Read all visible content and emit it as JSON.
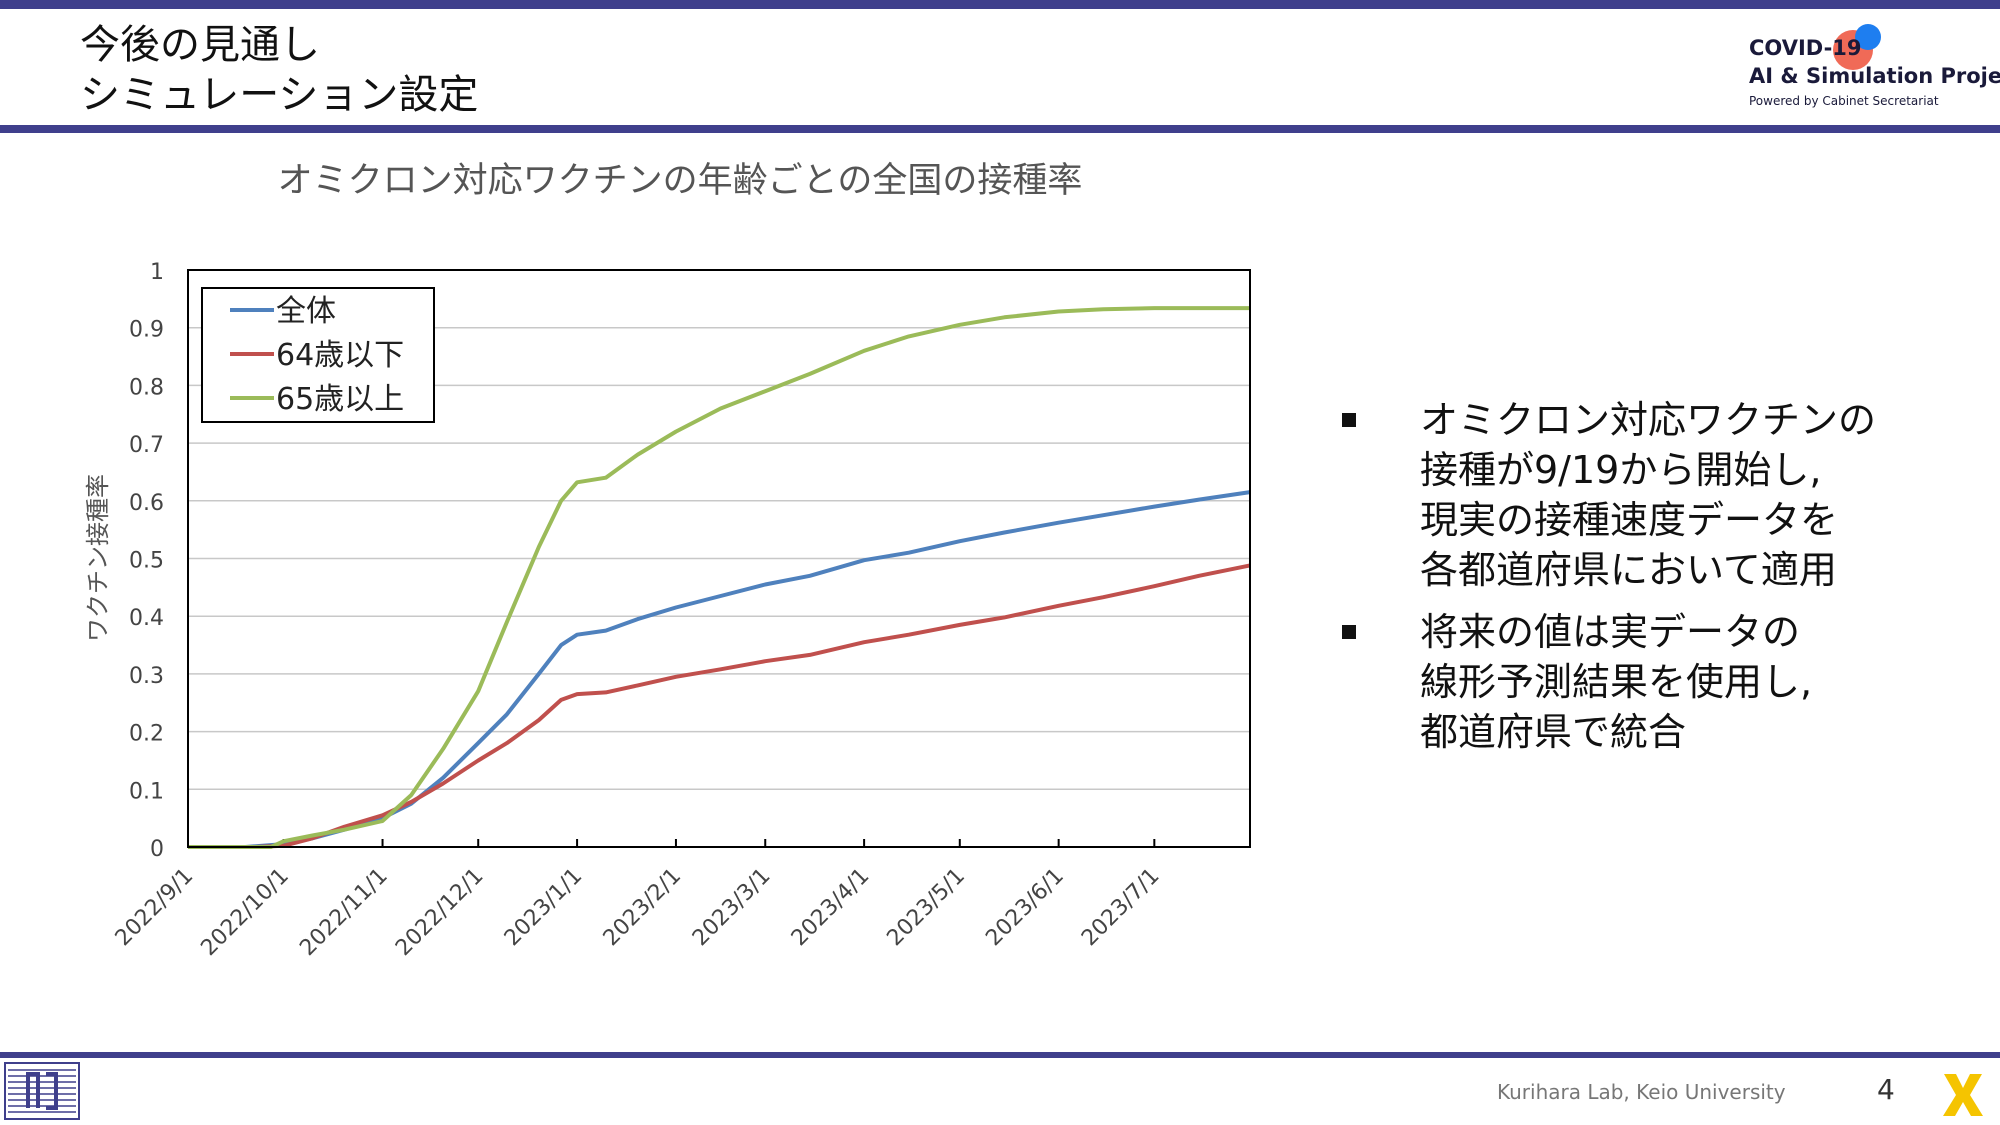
{
  "slide": {
    "title_line1": "今後の見通し",
    "title_line2": "シミュレーション設定",
    "page_number": "4",
    "footer_credit": "Kurihara Lab, Keio University"
  },
  "logo": {
    "line1": "COVID-19",
    "line2": "AI & Simulation Project",
    "line3": "Powered by Cabinet Secretariat"
  },
  "bullets": [
    {
      "lines": [
        "オミクロン対応ワクチンの",
        "接種が9/19から開始し,",
        "現実の接種速度データを",
        "各都道府県において適用"
      ]
    },
    {
      "lines": [
        "将来の値は実データの",
        "線形予測結果を使用し,",
        "都道府県で統合"
      ]
    }
  ],
  "colors": {
    "accent": "#3f3f8c",
    "series_total": "#4f81bd",
    "series_under64": "#c0504d",
    "series_over65": "#9bbb59"
  },
  "chart_data": {
    "type": "line",
    "title": "オミクロン対応ワクチンの年齢ごとの全国の接種率",
    "xlabel": "",
    "ylabel": "ワクチン接種率",
    "ylim": [
      0,
      1
    ],
    "yticks": [
      "0",
      "0.1",
      "0.2",
      "0.3",
      "0.4",
      "0.5",
      "0.6",
      "0.7",
      "0.8",
      "0.9",
      "1"
    ],
    "xlim": [
      "2022-09-01",
      "2023-07-31"
    ],
    "xticks": [
      {
        "date": "2022-09-01",
        "label": "2022/9/1"
      },
      {
        "date": "2022-10-01",
        "label": "2022/10/1"
      },
      {
        "date": "2022-11-01",
        "label": "2022/11/1"
      },
      {
        "date": "2022-12-01",
        "label": "2022/12/1"
      },
      {
        "date": "2023-01-01",
        "label": "2023/1/1"
      },
      {
        "date": "2023-02-01",
        "label": "2023/2/1"
      },
      {
        "date": "2023-03-01",
        "label": "2023/3/1"
      },
      {
        "date": "2023-04-01",
        "label": "2023/4/1"
      },
      {
        "date": "2023-05-01",
        "label": "2023/5/1"
      },
      {
        "date": "2023-06-01",
        "label": "2023/6/1"
      },
      {
        "date": "2023-07-01",
        "label": "2023/7/1"
      }
    ],
    "grid": true,
    "legend_position": "top-left",
    "series": [
      {
        "name": "全体",
        "color": "#4f81bd",
        "points": [
          [
            "2022-09-01",
            0
          ],
          [
            "2022-09-19",
            0
          ],
          [
            "2022-10-01",
            0.005
          ],
          [
            "2022-10-10",
            0.015
          ],
          [
            "2022-10-20",
            0.03
          ],
          [
            "2022-11-01",
            0.05
          ],
          [
            "2022-11-10",
            0.075
          ],
          [
            "2022-11-20",
            0.12
          ],
          [
            "2022-12-01",
            0.18
          ],
          [
            "2022-12-10",
            0.23
          ],
          [
            "2022-12-20",
            0.3
          ],
          [
            "2022-12-27",
            0.35
          ],
          [
            "2023-01-01",
            0.368
          ],
          [
            "2023-01-10",
            0.375
          ],
          [
            "2023-01-20",
            0.395
          ],
          [
            "2023-02-01",
            0.415
          ],
          [
            "2023-02-15",
            0.435
          ],
          [
            "2023-03-01",
            0.455
          ],
          [
            "2023-03-15",
            0.47
          ],
          [
            "2023-04-01",
            0.497
          ],
          [
            "2023-04-15",
            0.51
          ],
          [
            "2023-05-01",
            0.53
          ],
          [
            "2023-05-15",
            0.545
          ],
          [
            "2023-06-01",
            0.562
          ],
          [
            "2023-06-15",
            0.575
          ],
          [
            "2023-07-01",
            0.59
          ],
          [
            "2023-07-15",
            0.602
          ],
          [
            "2023-07-31",
            0.615
          ]
        ]
      },
      {
        "name": "64歳以下",
        "color": "#c0504d",
        "points": [
          [
            "2022-09-01",
            0
          ],
          [
            "2022-09-22",
            0
          ],
          [
            "2022-10-01",
            0.002
          ],
          [
            "2022-10-10",
            0.015
          ],
          [
            "2022-10-20",
            0.035
          ],
          [
            "2022-11-01",
            0.055
          ],
          [
            "2022-11-10",
            0.078
          ],
          [
            "2022-11-20",
            0.11
          ],
          [
            "2022-12-01",
            0.15
          ],
          [
            "2022-12-10",
            0.18
          ],
          [
            "2022-12-20",
            0.22
          ],
          [
            "2022-12-27",
            0.255
          ],
          [
            "2023-01-01",
            0.265
          ],
          [
            "2023-01-10",
            0.268
          ],
          [
            "2023-01-20",
            0.28
          ],
          [
            "2023-02-01",
            0.295
          ],
          [
            "2023-02-15",
            0.308
          ],
          [
            "2023-03-01",
            0.322
          ],
          [
            "2023-03-15",
            0.333
          ],
          [
            "2023-04-01",
            0.355
          ],
          [
            "2023-04-15",
            0.368
          ],
          [
            "2023-05-01",
            0.385
          ],
          [
            "2023-05-15",
            0.398
          ],
          [
            "2023-06-01",
            0.418
          ],
          [
            "2023-06-15",
            0.433
          ],
          [
            "2023-07-01",
            0.452
          ],
          [
            "2023-07-15",
            0.47
          ],
          [
            "2023-07-31",
            0.488
          ]
        ]
      },
      {
        "name": "65歳以上",
        "color": "#9bbb59",
        "points": [
          [
            "2022-09-01",
            0
          ],
          [
            "2022-09-27",
            0
          ],
          [
            "2022-10-01",
            0.01
          ],
          [
            "2022-10-10",
            0.02
          ],
          [
            "2022-10-20",
            0.03
          ],
          [
            "2022-11-01",
            0.045
          ],
          [
            "2022-11-10",
            0.09
          ],
          [
            "2022-11-20",
            0.17
          ],
          [
            "2022-12-01",
            0.27
          ],
          [
            "2022-12-10",
            0.39
          ],
          [
            "2022-12-20",
            0.52
          ],
          [
            "2022-12-27",
            0.6
          ],
          [
            "2023-01-01",
            0.632
          ],
          [
            "2023-01-10",
            0.64
          ],
          [
            "2023-01-20",
            0.68
          ],
          [
            "2023-02-01",
            0.72
          ],
          [
            "2023-02-15",
            0.76
          ],
          [
            "2023-03-01",
            0.79
          ],
          [
            "2023-03-15",
            0.82
          ],
          [
            "2023-04-01",
            0.86
          ],
          [
            "2023-04-15",
            0.885
          ],
          [
            "2023-05-01",
            0.905
          ],
          [
            "2023-05-15",
            0.918
          ],
          [
            "2023-06-01",
            0.928
          ],
          [
            "2023-06-15",
            0.932
          ],
          [
            "2023-07-01",
            0.934
          ],
          [
            "2023-07-15",
            0.934
          ],
          [
            "2023-07-31",
            0.934
          ]
        ]
      }
    ]
  }
}
